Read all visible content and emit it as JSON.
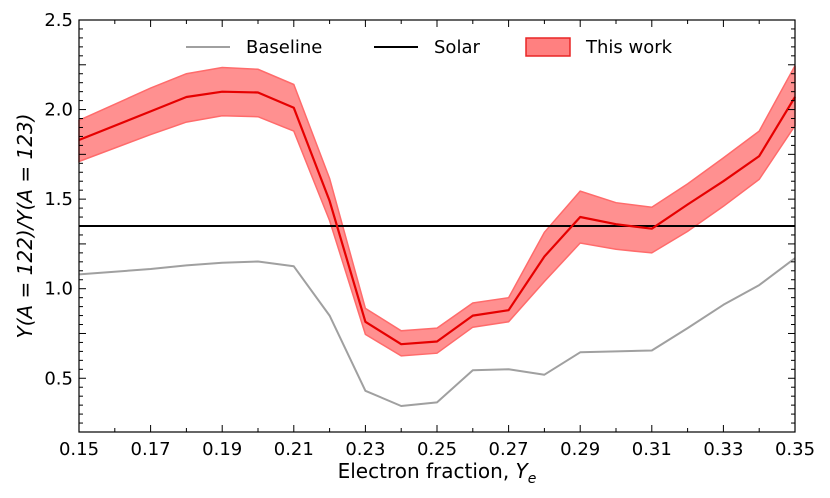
{
  "chart_data": {
    "type": "line",
    "title": "",
    "xlabel_prefix": "Electron fraction, ",
    "xlabel_var": "Y",
    "xlabel_sub": "e",
    "ylabel": "Y(A = 122)/Y(A = 123)",
    "xlim": [
      0.15,
      0.35
    ],
    "ylim": [
      0.2,
      2.5
    ],
    "x_ticks": [
      "0.15",
      "0.17",
      "0.19",
      "0.21",
      "0.23",
      "0.25",
      "0.27",
      "0.29",
      "0.31",
      "0.33",
      "0.35"
    ],
    "y_ticks": [
      "0.5",
      "1.0",
      "1.5",
      "2.0",
      "2.5"
    ],
    "legend_position": "top-center",
    "series": [
      {
        "name": "Baseline",
        "color": "#a0a0a0",
        "x": [
          0.15,
          0.17,
          0.18,
          0.19,
          0.2,
          0.21,
          0.22,
          0.23,
          0.24,
          0.25,
          0.26,
          0.27,
          0.28,
          0.29,
          0.3,
          0.31,
          0.32,
          0.33,
          0.34,
          0.35
        ],
        "values": [
          1.08,
          1.11,
          1.13,
          1.145,
          1.152,
          1.125,
          0.85,
          0.43,
          0.345,
          0.365,
          0.545,
          0.55,
          0.52,
          0.645,
          0.65,
          0.655,
          0.78,
          0.91,
          1.02,
          1.17
        ]
      },
      {
        "name": "Solar",
        "color": "#000000",
        "x": [
          0.15,
          0.35
        ],
        "values": [
          1.35,
          1.35
        ]
      },
      {
        "name": "This work",
        "color": "#e60000",
        "band_color": "#ff6b6b",
        "x": [
          0.15,
          0.17,
          0.18,
          0.19,
          0.2,
          0.21,
          0.22,
          0.23,
          0.24,
          0.25,
          0.26,
          0.27,
          0.28,
          0.29,
          0.3,
          0.31,
          0.32,
          0.33,
          0.34,
          0.35
        ],
        "values": [
          1.83,
          1.99,
          2.07,
          2.1,
          2.095,
          2.01,
          1.49,
          0.815,
          0.69,
          0.705,
          0.85,
          0.88,
          1.18,
          1.4,
          1.36,
          1.335,
          1.47,
          1.6,
          1.74,
          2.07
        ],
        "lower": [
          1.71,
          1.86,
          1.93,
          1.965,
          1.96,
          1.88,
          1.38,
          0.745,
          0.625,
          0.64,
          0.785,
          0.815,
          1.04,
          1.255,
          1.22,
          1.2,
          1.32,
          1.46,
          1.61,
          1.91
        ],
        "upper": [
          1.94,
          2.12,
          2.2,
          2.235,
          2.225,
          2.14,
          1.615,
          0.89,
          0.765,
          0.78,
          0.92,
          0.95,
          1.315,
          1.545,
          1.48,
          1.455,
          1.585,
          1.73,
          1.88,
          2.245
        ]
      }
    ]
  }
}
